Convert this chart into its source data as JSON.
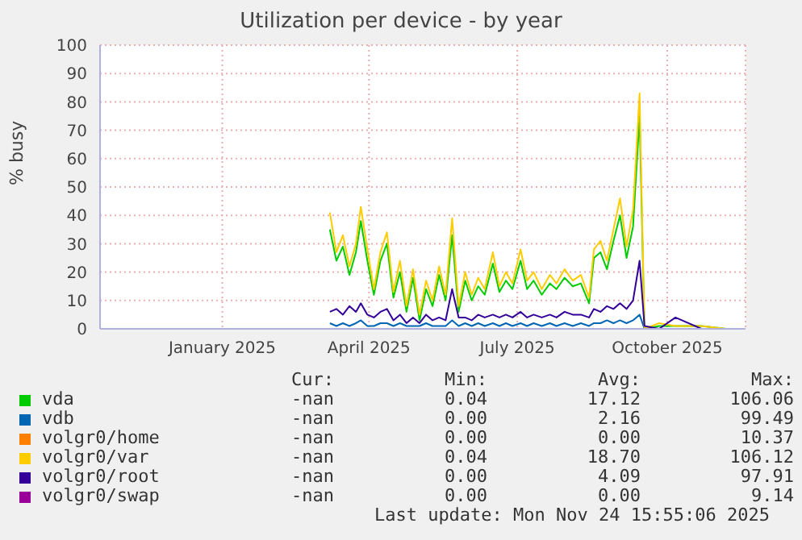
{
  "chart_data": {
    "type": "line",
    "title": "Utilization per device - by year",
    "ylabel": "% busy",
    "x": [
      "2025-03-22",
      "2025-03-26",
      "2025-03-30",
      "2025-04-03",
      "2025-04-07",
      "2025-04-10",
      "2025-04-14",
      "2025-04-18",
      "2025-04-22",
      "2025-04-26",
      "2025-04-30",
      "2025-05-04",
      "2025-05-08",
      "2025-05-12",
      "2025-05-16",
      "2025-05-20",
      "2025-05-24",
      "2025-05-28",
      "2025-06-01",
      "2025-06-05",
      "2025-06-09",
      "2025-06-13",
      "2025-06-17",
      "2025-06-21",
      "2025-06-25",
      "2025-06-30",
      "2025-07-04",
      "2025-07-08",
      "2025-07-12",
      "2025-07-17",
      "2025-07-21",
      "2025-07-25",
      "2025-07-30",
      "2025-08-04",
      "2025-08-08",
      "2025-08-13",
      "2025-08-18",
      "2025-08-23",
      "2025-08-28",
      "2025-08-31",
      "2025-09-04",
      "2025-09-08",
      "2025-09-12",
      "2025-09-16",
      "2025-09-20",
      "2025-09-24",
      "2025-09-28",
      "2025-10-01",
      "2025-10-10",
      "2025-10-20",
      "2025-11-05",
      "2025-11-20"
    ],
    "series": [
      {
        "name": "vda",
        "color": "#00cc00",
        "values": [
          35,
          24,
          29,
          19,
          27,
          38,
          24,
          12,
          24,
          30,
          11,
          20,
          6,
          18,
          3,
          14,
          8,
          19,
          10,
          33,
          6,
          17,
          10,
          15,
          12,
          23,
          13,
          17,
          14,
          24,
          14,
          17,
          12,
          16,
          14,
          18,
          15,
          16,
          9,
          25,
          27,
          21,
          31,
          40,
          25,
          36,
          75,
          0,
          1,
          1,
          1,
          0
        ]
      },
      {
        "name": "vdb",
        "color": "#0066b3",
        "values": [
          2,
          1,
          2,
          1,
          2,
          3,
          1,
          1,
          2,
          2,
          1,
          2,
          1,
          1,
          1,
          2,
          1,
          1,
          1,
          3,
          1,
          2,
          1,
          2,
          1,
          2,
          1,
          2,
          1,
          2,
          1,
          2,
          1,
          2,
          1,
          2,
          1,
          2,
          1,
          2,
          2,
          3,
          2,
          3,
          2,
          3,
          5,
          0,
          0,
          null,
          null,
          null
        ]
      },
      {
        "name": "volgr0/home",
        "color": "#ff8000",
        "values": [
          null,
          null,
          null,
          null,
          null,
          null,
          null,
          null,
          null,
          null,
          null,
          null,
          null,
          null,
          null,
          null,
          null,
          null,
          null,
          null,
          null,
          null,
          null,
          null,
          null,
          null,
          null,
          null,
          null,
          null,
          null,
          null,
          null,
          null,
          null,
          null,
          null,
          null,
          null,
          null,
          null,
          null,
          null,
          null,
          null,
          null,
          null,
          null,
          null,
          null,
          null,
          null
        ]
      },
      {
        "name": "volgr0/var",
        "color": "#ffcc00",
        "values": [
          41,
          27,
          33,
          22,
          30,
          43,
          28,
          14,
          27,
          34,
          13,
          24,
          8,
          21,
          5,
          17,
          10,
          22,
          12,
          39,
          8,
          20,
          12,
          18,
          14,
          27,
          15,
          20,
          16,
          28,
          17,
          20,
          14,
          19,
          16,
          21,
          17,
          19,
          11,
          28,
          31,
          24,
          35,
          46,
          29,
          42,
          83,
          0,
          2,
          1,
          1,
          0
        ]
      },
      {
        "name": "volgr0/root",
        "color": "#330099",
        "values": [
          6,
          7,
          5,
          8,
          6,
          9,
          5,
          4,
          6,
          7,
          3,
          5,
          2,
          4,
          2,
          5,
          3,
          4,
          3,
          14,
          4,
          4,
          3,
          5,
          4,
          5,
          4,
          5,
          4,
          6,
          4,
          5,
          4,
          5,
          4,
          6,
          5,
          5,
          4,
          7,
          6,
          8,
          7,
          9,
          7,
          10,
          24,
          1,
          0,
          4,
          0,
          0
        ]
      },
      {
        "name": "volgr0/swap",
        "color": "#990099",
        "values": [
          null,
          null,
          null,
          null,
          null,
          null,
          null,
          null,
          null,
          null,
          null,
          null,
          null,
          null,
          null,
          null,
          null,
          null,
          null,
          null,
          null,
          null,
          null,
          null,
          null,
          null,
          null,
          null,
          null,
          null,
          null,
          null,
          null,
          null,
          null,
          null,
          null,
          null,
          null,
          null,
          null,
          null,
          null,
          null,
          null,
          null,
          null,
          null,
          null,
          null,
          null,
          null
        ]
      }
    ],
    "xlim": [
      "2024-11-01",
      "2025-12-02"
    ],
    "xticks": [
      {
        "value": "2025-01-15",
        "label": "January 2025"
      },
      {
        "value": "2025-04-15",
        "label": "April 2025"
      },
      {
        "value": "2025-07-15",
        "label": "July 2025"
      },
      {
        "value": "2025-10-15",
        "label": "October 2025"
      }
    ],
    "ylim": [
      0,
      100
    ],
    "yticks": [
      0,
      10,
      20,
      30,
      40,
      50,
      60,
      70,
      80,
      90,
      100
    ],
    "grid": true,
    "legend": "bottom",
    "marker": "none",
    "line_style": "solid",
    "annotations": [
      "Cur:",
      "Min:",
      "Avg:",
      "Max:",
      "-nan",
      "0.04",
      "17.12",
      "106.06",
      "-nan",
      "0.00",
      "2.16",
      "99.49",
      "-nan",
      "0.00",
      "0.00",
      "10.37",
      "-nan",
      "0.04",
      "18.70",
      "106.12",
      "-nan",
      "0.00",
      "4.09",
      "97.91",
      "-nan",
      "0.00",
      "0.00",
      "9.14",
      "Last update: Mon Nov 24 15:55:06 2025"
    ]
  }
}
